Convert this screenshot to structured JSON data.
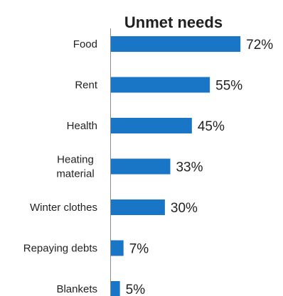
{
  "chart_data": {
    "type": "bar",
    "orientation": "horizontal",
    "title": "Unmet needs",
    "categories": [
      [
        "Food"
      ],
      [
        "Rent"
      ],
      [
        "Health"
      ],
      [
        "Heating",
        "material"
      ],
      [
        "Winter clothes"
      ],
      [
        "Repaying debts"
      ],
      [
        "Blankets"
      ]
    ],
    "values": [
      72,
      55,
      45,
      33,
      30,
      7,
      5
    ],
    "value_labels": [
      "72%",
      "55%",
      "45%",
      "33%",
      "30%",
      "7%",
      "5%"
    ],
    "xlim": [
      0,
      100
    ],
    "bar_color": "#1976c6",
    "axis_color": "#8c8c8c",
    "grid": false,
    "legend": "none"
  }
}
